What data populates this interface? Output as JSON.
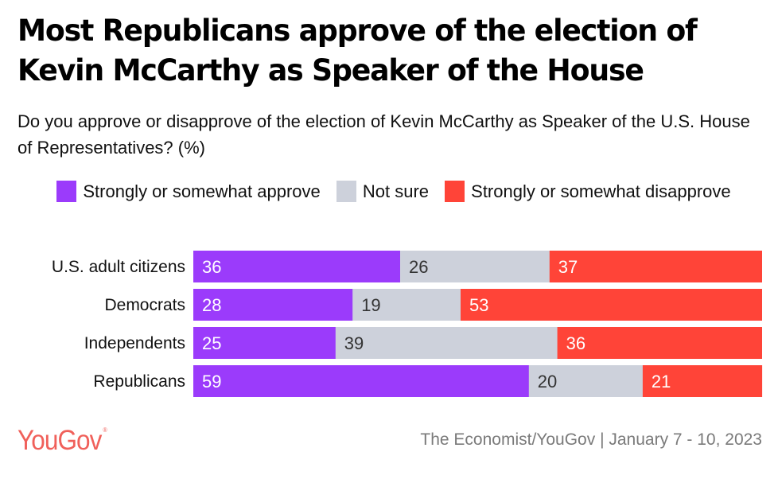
{
  "title": "Most Republicans approve of the election of Kevin McCarthy as Speaker of the House",
  "subtitle": "Do you approve or disapprove of the election of Kevin McCarthy as Speaker of the U.S. House of Representatives? (%)",
  "footer": {
    "logo": "YouGov",
    "logo_mark": "®",
    "source": "The Economist/YouGov | January 7 - 10, 2023"
  },
  "colors": {
    "approve": "#9b3bfb",
    "not_sure": "#cdd1db",
    "disapprove": "#ff4438",
    "logo": "#f0605a"
  },
  "chart_data": {
    "type": "bar",
    "orientation": "horizontal",
    "stacked": true,
    "title": "Most Republicans approve of the election of Kevin McCarthy as Speaker of the House",
    "subtitle": "Do you approve or disapprove of the election of Kevin McCarthy as Speaker of the U.S. House of Representatives? (%)",
    "xlabel": "",
    "ylabel": "",
    "xlim": [
      0,
      100
    ],
    "grid": false,
    "legend_position": "top",
    "categories": [
      "U.S. adult citizens",
      "Democrats",
      "Independents",
      "Republicans"
    ],
    "series": [
      {
        "name": "Strongly or somewhat approve",
        "color": "#9b3bfb",
        "label_color": "#ffffff",
        "values": [
          36,
          28,
          25,
          59
        ]
      },
      {
        "name": "Not sure",
        "color": "#cdd1db",
        "label_color": "#333333",
        "values": [
          26,
          19,
          39,
          20
        ]
      },
      {
        "name": "Strongly or somewhat disapprove",
        "color": "#ff4438",
        "label_color": "#ffffff",
        "values": [
          37,
          53,
          36,
          21
        ]
      }
    ]
  }
}
